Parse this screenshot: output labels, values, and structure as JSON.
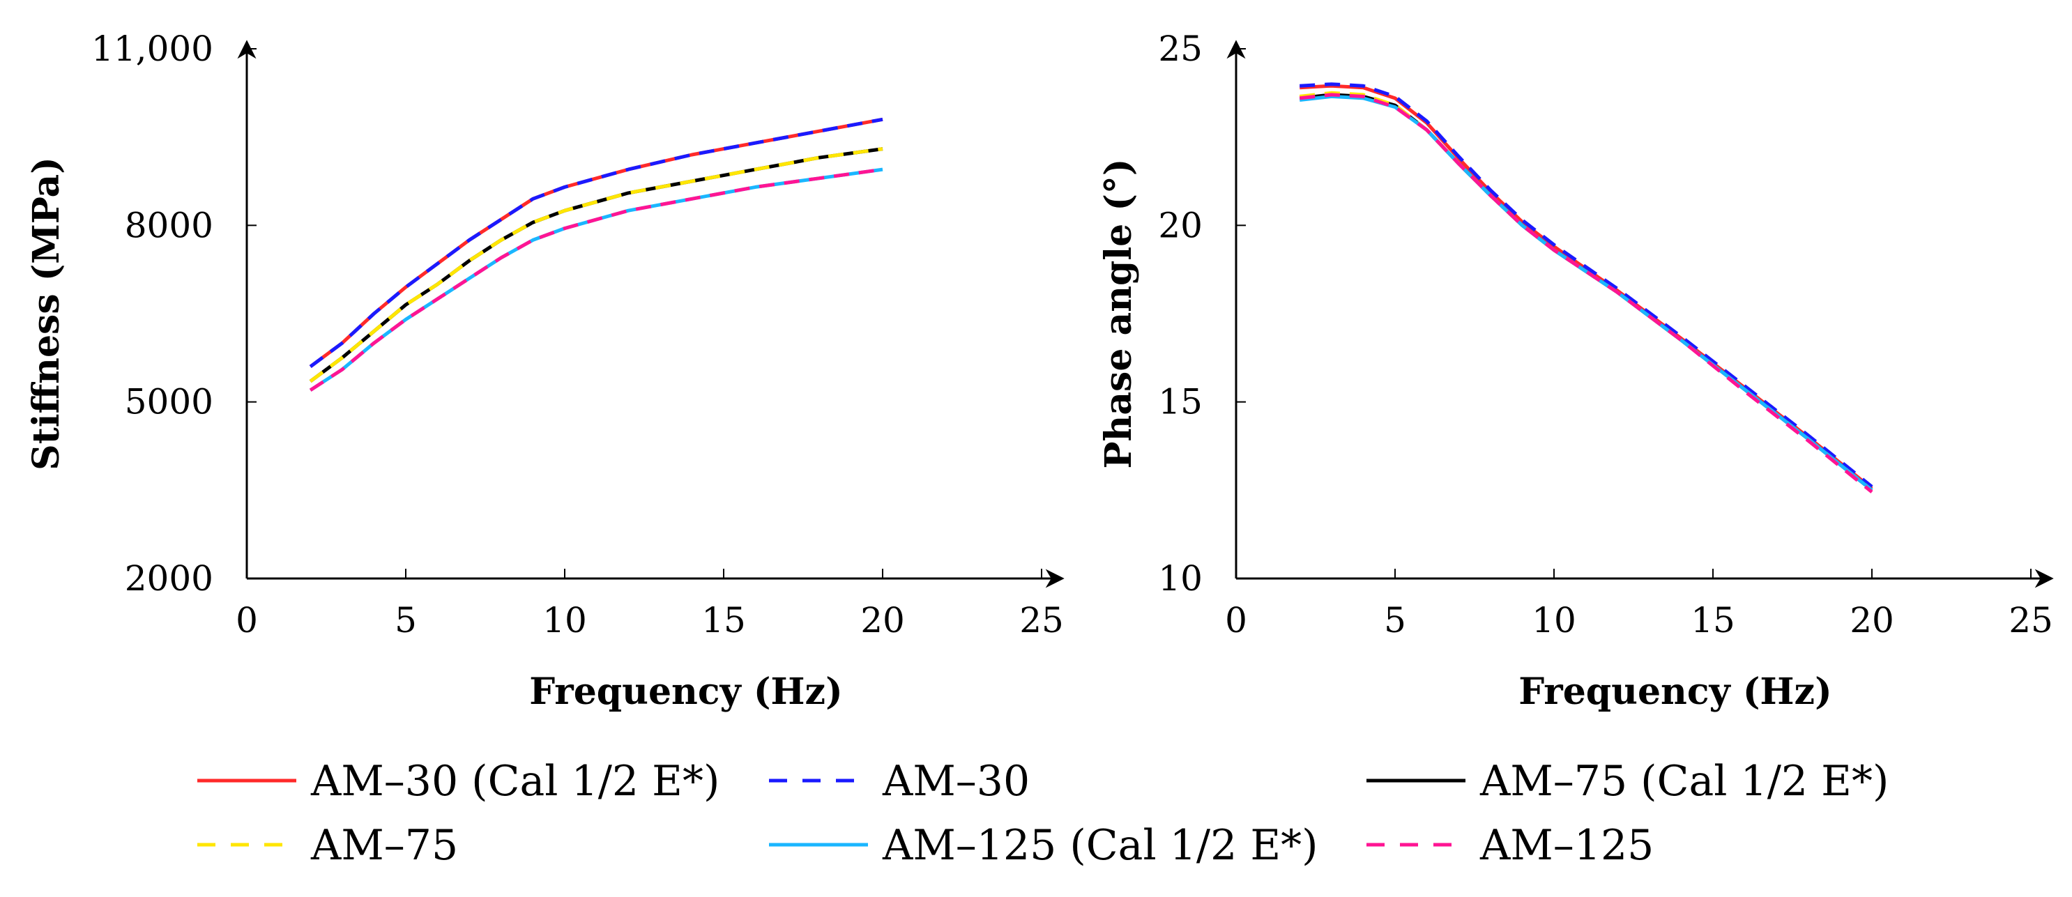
{
  "chart_data": [
    {
      "type": "line",
      "xlabel": "Frequency (Hz)",
      "ylabel": "Stiffness (MPa)",
      "xlim": [
        0,
        25
      ],
      "ylim": [
        2000,
        11000
      ],
      "xticks": [
        0,
        5,
        10,
        15,
        20,
        25
      ],
      "xtick_labels": [
        "0",
        "5",
        "10",
        "15",
        "20",
        "25"
      ],
      "yticks": [
        2000,
        5000,
        8000,
        11000
      ],
      "ytick_labels": [
        "2000",
        "5000",
        "8000",
        "11,000"
      ],
      "x": [
        2,
        3,
        4,
        5,
        6,
        7,
        8,
        9,
        10,
        12,
        14,
        16,
        18,
        20
      ],
      "series": [
        {
          "name": "AM–30 (Cal 1/2 E*)",
          "values": [
            5600,
            6000,
            6500,
            6950,
            7350,
            7750,
            8100,
            8450,
            8650,
            8950,
            9200,
            9400,
            9600,
            9800
          ]
        },
        {
          "name": "AM–30",
          "values": [
            5600,
            6000,
            6500,
            6950,
            7350,
            7750,
            8100,
            8450,
            8650,
            8950,
            9200,
            9400,
            9600,
            9800
          ]
        },
        {
          "name": "AM–75 (Cal 1/2 E*)",
          "values": [
            5350,
            5750,
            6200,
            6650,
            7000,
            7400,
            7750,
            8050,
            8250,
            8550,
            8750,
            8950,
            9150,
            9300
          ]
        },
        {
          "name": "AM–75",
          "values": [
            5350,
            5750,
            6200,
            6650,
            7000,
            7400,
            7750,
            8050,
            8250,
            8550,
            8750,
            8950,
            9150,
            9300
          ]
        },
        {
          "name": "AM–125 (Cal 1/2 E*)",
          "values": [
            5200,
            5550,
            6000,
            6400,
            6750,
            7100,
            7450,
            7750,
            7950,
            8250,
            8450,
            8650,
            8800,
            8950
          ]
        },
        {
          "name": "AM–125",
          "values": [
            5200,
            5550,
            6000,
            6400,
            6750,
            7100,
            7450,
            7750,
            7950,
            8250,
            8450,
            8650,
            8800,
            8950
          ]
        }
      ]
    },
    {
      "type": "line",
      "xlabel": "Frequency (Hz)",
      "ylabel": "Phase angle (°)",
      "xlim": [
        0,
        25
      ],
      "ylim": [
        10,
        25
      ],
      "xticks": [
        0,
        5,
        10,
        15,
        20,
        25
      ],
      "xtick_labels": [
        "0",
        "5",
        "10",
        "15",
        "20",
        "25"
      ],
      "yticks": [
        10,
        15,
        20,
        25
      ],
      "ytick_labels": [
        "10",
        "15",
        "20",
        "25"
      ],
      "x": [
        2,
        3,
        4,
        5,
        6,
        7,
        8,
        9,
        10,
        12,
        14,
        16,
        18,
        20
      ],
      "series": [
        {
          "name": "AM–30 (Cal 1/2 E*)",
          "values": [
            23.9,
            23.95,
            23.9,
            23.6,
            22.9,
            21.9,
            20.95,
            20.1,
            19.4,
            18.15,
            16.8,
            15.4,
            14.0,
            12.55
          ]
        },
        {
          "name": "AM–30",
          "values": [
            23.95,
            24.0,
            23.95,
            23.65,
            22.95,
            21.95,
            21.0,
            20.15,
            19.45,
            18.2,
            16.85,
            15.45,
            14.05,
            12.6
          ]
        },
        {
          "name": "AM–75 (Cal 1/2 E*)",
          "values": [
            23.6,
            23.7,
            23.65,
            23.4,
            22.7,
            21.75,
            20.85,
            20.0,
            19.3,
            18.1,
            16.75,
            15.35,
            13.95,
            12.5
          ]
        },
        {
          "name": "AM–75",
          "values": [
            23.65,
            23.75,
            23.7,
            23.4,
            22.7,
            21.75,
            20.85,
            20.0,
            19.3,
            18.1,
            16.75,
            15.35,
            13.95,
            12.5
          ]
        },
        {
          "name": "AM–125 (Cal 1/2 E*)",
          "values": [
            23.55,
            23.65,
            23.6,
            23.35,
            22.7,
            21.75,
            20.85,
            20.0,
            19.3,
            18.1,
            16.75,
            15.35,
            13.95,
            12.5
          ]
        },
        {
          "name": "AM–125",
          "values": [
            23.6,
            23.7,
            23.65,
            23.35,
            22.7,
            21.75,
            20.85,
            20.0,
            19.3,
            18.1,
            16.75,
            15.3,
            13.9,
            12.45
          ]
        }
      ]
    }
  ],
  "series_styles": [
    {
      "color": "#ff2a2a",
      "dash": "solid"
    },
    {
      "color": "#1a1aff",
      "dash": "dashed"
    },
    {
      "color": "#000000",
      "dash": "solid"
    },
    {
      "color": "#ffe600",
      "dash": "dashed"
    },
    {
      "color": "#1ab6ff",
      "dash": "solid"
    },
    {
      "color": "#ff1493",
      "dash": "dashed"
    }
  ],
  "legend": {
    "placement": "bottom",
    "items": [
      "AM–30 (Cal 1/2 E*)",
      "AM–30",
      "AM–75 (Cal 1/2 E*)",
      "AM–75",
      "AM–125 (Cal 1/2 E*)",
      "AM–125"
    ]
  }
}
